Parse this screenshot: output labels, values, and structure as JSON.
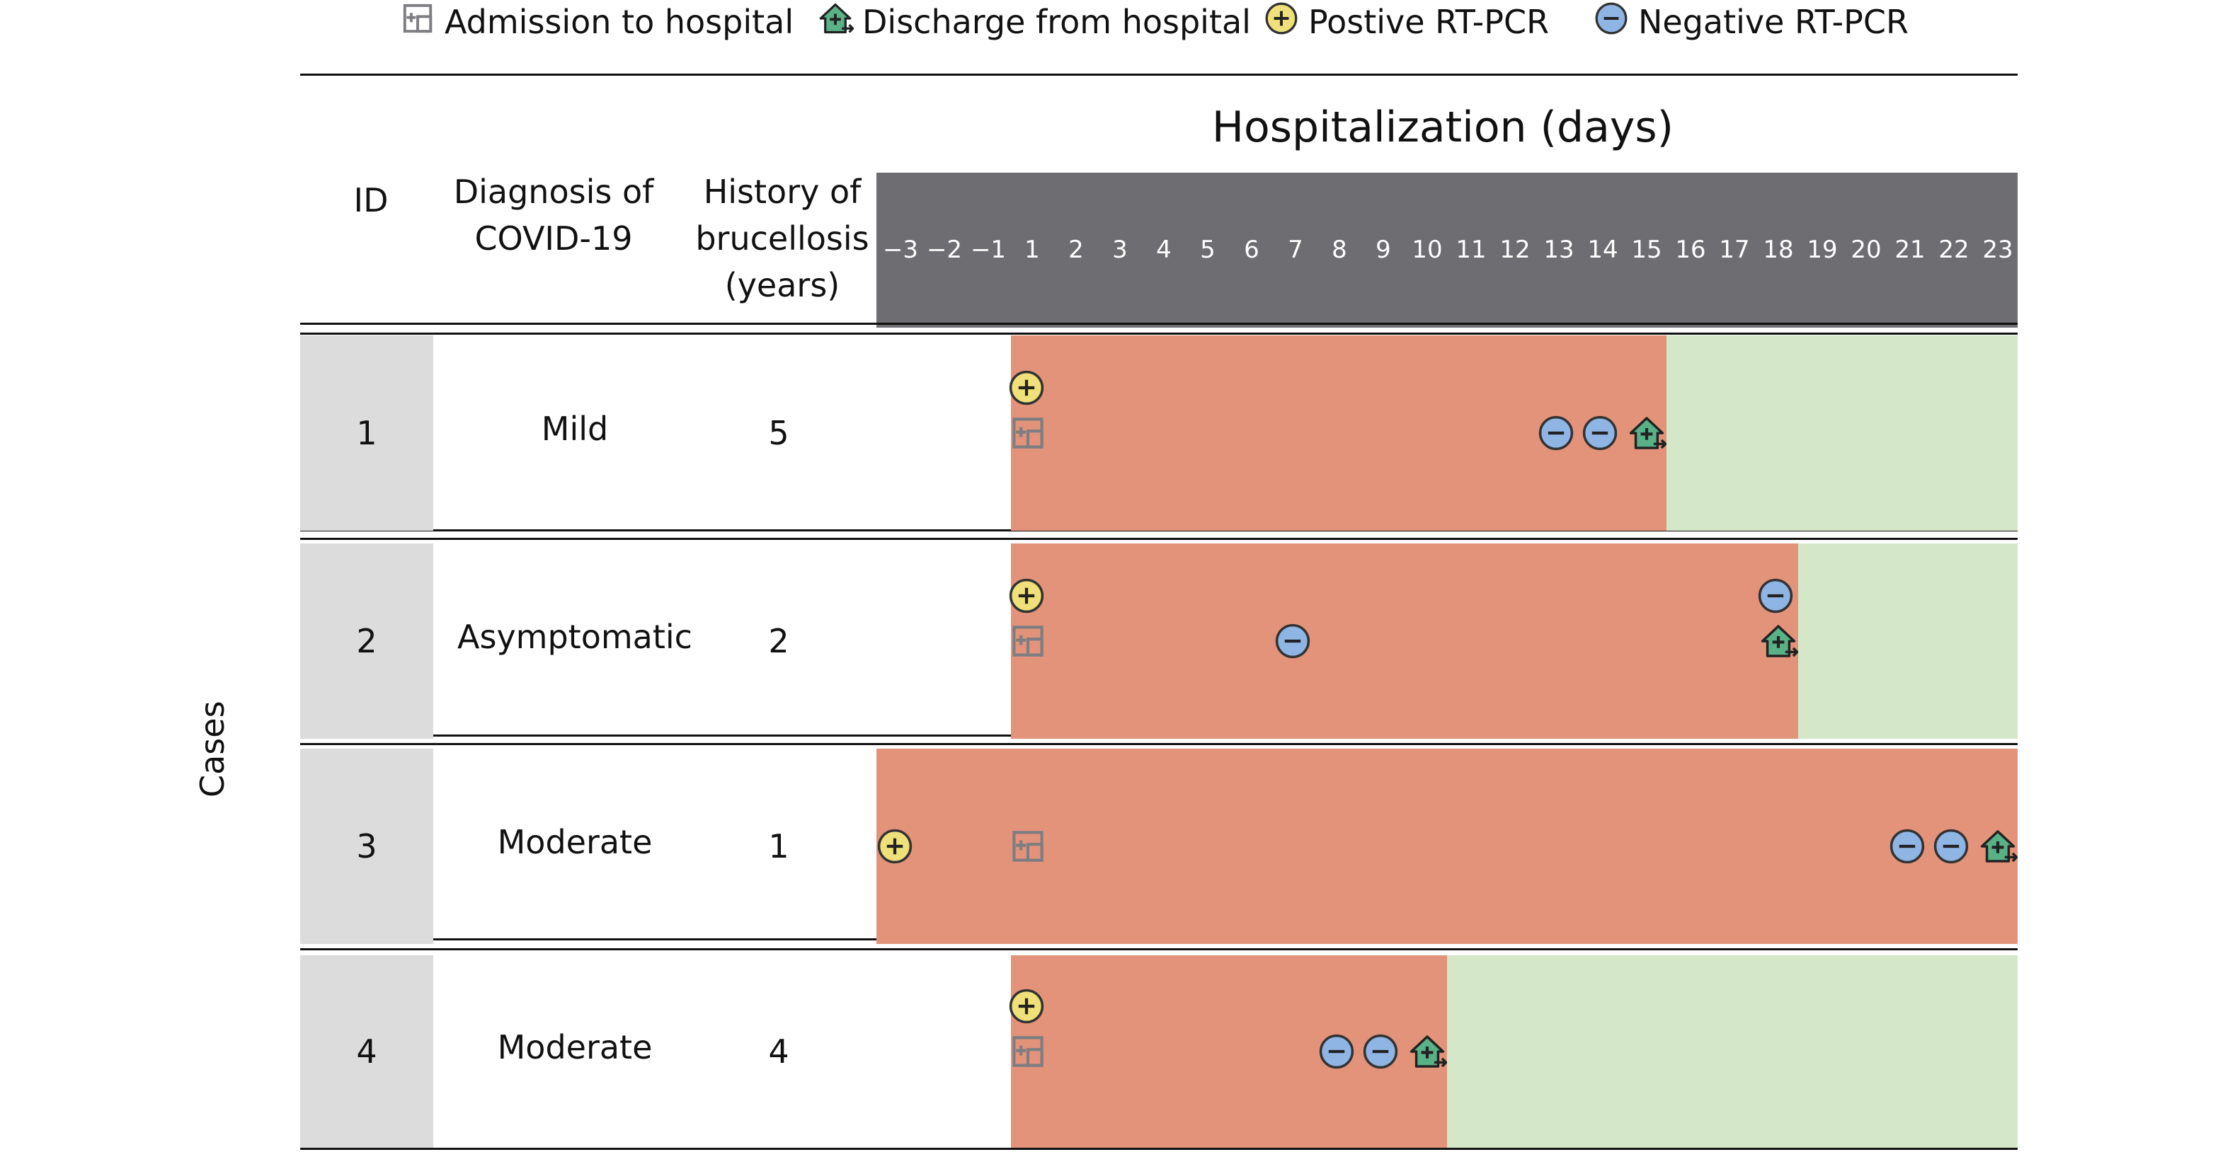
{
  "legend": {
    "admission": "Admission to hospital",
    "discharge": "Discharge from hospital",
    "positive": "Postive RT-PCR",
    "negative": "Negative RT-PCR"
  },
  "header": {
    "title": "Hospitalization (days)",
    "col_id": "ID",
    "col_diag_1": "Diagnosis of",
    "col_diag_2": "COVID-19",
    "col_hist_1": "History of",
    "col_hist_2": "brucellosis",
    "col_hist_3": "(years)",
    "days": [
      "−3",
      "−2",
      "−1",
      "1",
      "2",
      "3",
      "4",
      "5",
      "6",
      "7",
      "8",
      "9",
      "10",
      "11",
      "12",
      "13",
      "14",
      "15",
      "16",
      "17",
      "18",
      "19",
      "20",
      "21",
      "22",
      "23"
    ]
  },
  "axis_label": "Cases",
  "colors": {
    "hospital": "#e3937a",
    "after_discharge": "#d4e7c8",
    "header_band": "#6d6d72",
    "id_column": "#dcdcdc",
    "positive": "#efe07a",
    "negative": "#8fb5e4",
    "discharge_house": "#59b287",
    "admission_icon": "#7d7d82"
  },
  "rows": [
    {
      "id": "1",
      "diagnosis": "Mild",
      "history": "5",
      "hospital_from_day": "1",
      "discharge_day": "15",
      "timeline_end_day": "23",
      "events": {
        "positive": [
          "1"
        ],
        "admission": [
          "1"
        ],
        "negative": [
          "13",
          "14"
        ],
        "discharge": [
          "15"
        ]
      }
    },
    {
      "id": "2",
      "diagnosis": "Asymptomatic",
      "history": "2",
      "hospital_from_day": "1",
      "discharge_day": "18",
      "timeline_end_day": "23",
      "events": {
        "positive": [
          "1"
        ],
        "admission": [
          "1"
        ],
        "negative": [
          "7",
          "18"
        ],
        "discharge": [
          "18"
        ]
      }
    },
    {
      "id": "3",
      "diagnosis": "Moderate",
      "history": "1",
      "hospital_from_day": "−3",
      "discharge_day": "23",
      "timeline_end_day": "23",
      "events": {
        "positive": [
          "−3"
        ],
        "admission": [
          "1"
        ],
        "negative": [
          "21",
          "22"
        ],
        "discharge": [
          "23"
        ]
      }
    },
    {
      "id": "4",
      "diagnosis": "Moderate",
      "history": "4",
      "hospital_from_day": "1",
      "discharge_day": "10",
      "timeline_end_day": "23",
      "events": {
        "positive": [
          "1"
        ],
        "admission": [
          "1"
        ],
        "negative": [
          "8",
          "9"
        ],
        "discharge": [
          "10"
        ]
      }
    }
  ]
}
